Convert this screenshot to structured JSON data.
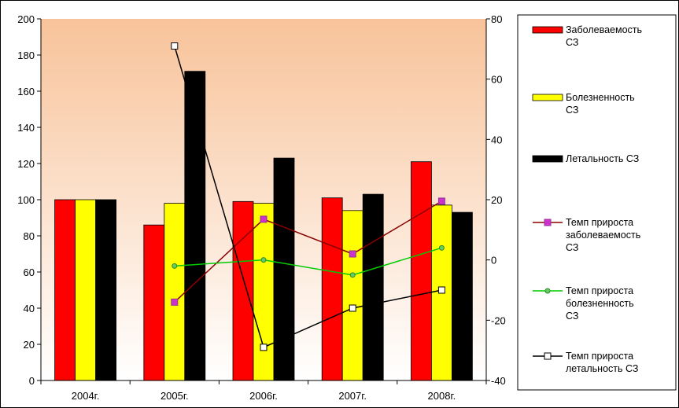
{
  "chart_data": {
    "type": "bar",
    "title": "",
    "categories": [
      "2004г.",
      "2005г.",
      "2006г.",
      "2007г.",
      "2008г."
    ],
    "left_axis": {
      "ylim": [
        0,
        200
      ],
      "ticks": [
        0,
        20,
        40,
        60,
        80,
        100,
        120,
        140,
        160,
        180,
        200
      ]
    },
    "right_axis": {
      "ylim": [
        -40,
        80
      ],
      "ticks": [
        -40,
        -20,
        0,
        20,
        40,
        60,
        80
      ]
    },
    "bar_series": [
      {
        "name": "Заболеваемость СЗ",
        "color": "#ff0000",
        "values": [
          100,
          86,
          99,
          101,
          121
        ]
      },
      {
        "name": "Болезненность СЗ",
        "color": "#ffff00",
        "values": [
          100,
          98,
          98,
          94,
          97
        ]
      },
      {
        "name": "Летальность СЗ",
        "color": "#000000",
        "values": [
          100,
          171,
          123,
          103,
          93
        ]
      }
    ],
    "line_series": [
      {
        "name": "Темп прироста заболеваемость СЗ",
        "color": "#8b0000",
        "marker": "square",
        "marker_color": "#cc33cc",
        "values": [
          null,
          -14,
          13.5,
          2,
          19.5
        ]
      },
      {
        "name": "Темп прироста болезненность СЗ",
        "color": "#00cc00",
        "marker": "circle",
        "marker_color": "#66cc66",
        "values": [
          null,
          -2,
          0,
          -5,
          4
        ]
      },
      {
        "name": "Темп прироста летальность СЗ",
        "color": "#000000",
        "marker": "square",
        "marker_color": "#ffffff",
        "values": [
          null,
          71,
          -29,
          -16,
          -10
        ]
      }
    ],
    "grid": false,
    "legend_position": "right",
    "plot_background": "gradient-peach"
  },
  "legend": {
    "items": [
      {
        "lines": [
          "Заболеваемость",
          "СЗ"
        ]
      },
      {
        "lines": [
          "Болезненность",
          "СЗ"
        ]
      },
      {
        "lines": [
          "Летальность  СЗ"
        ]
      },
      {
        "lines": [
          "Темп прироста",
          "заболеваемость",
          "СЗ"
        ]
      },
      {
        "lines": [
          "Темп прироста",
          "болезненность",
          "СЗ"
        ]
      },
      {
        "lines": [
          "Темп прироста",
          "летальность  СЗ"
        ]
      }
    ]
  }
}
